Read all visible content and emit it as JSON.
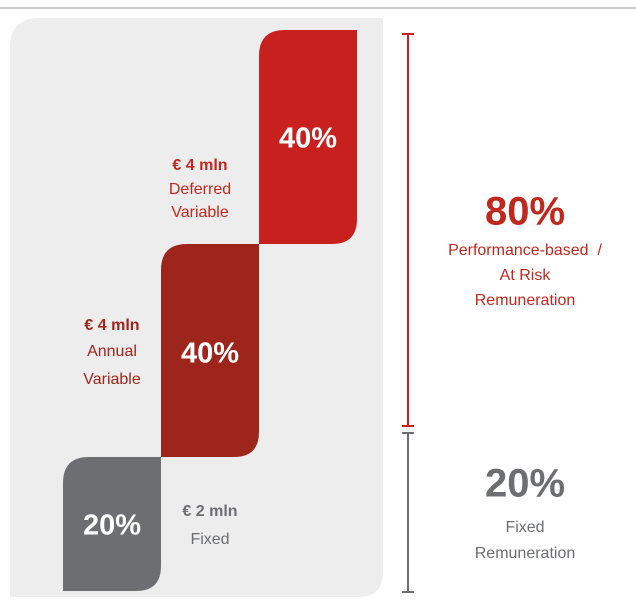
{
  "blocks": [
    {
      "percent": "40%",
      "amount": "€ 4 mln",
      "label": [
        "Deferred",
        "Variable"
      ]
    },
    {
      "percent": "40%",
      "amount": "€ 4 mln",
      "label": [
        "Annual",
        "Variable"
      ]
    },
    {
      "percent": "20%",
      "amount": "€ 2 mln",
      "label": [
        "Fixed"
      ]
    }
  ],
  "summary": [
    {
      "percent": "80%",
      "label": [
        "Performance-based  /",
        "At Risk",
        "Remuneration"
      ]
    },
    {
      "percent": "20%",
      "label": [
        "Fixed",
        "Remuneration"
      ]
    }
  ]
}
